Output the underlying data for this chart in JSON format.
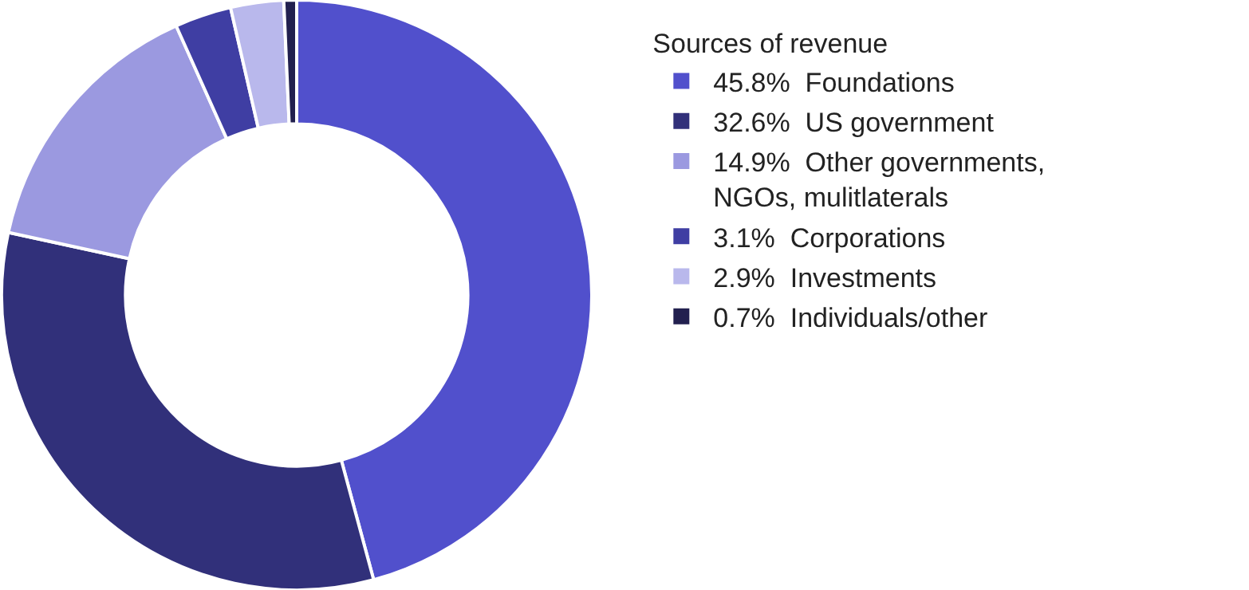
{
  "chart_data": {
    "type": "donut",
    "legend_title": "Sources of revenue",
    "legend": "right",
    "categories": [
      "Foundations",
      "US government",
      "Other governments, NGOs, mulitlaterals",
      "Corporations",
      "Investments",
      "Individuals/other"
    ],
    "values": [
      45.8,
      32.6,
      14.9,
      3.1,
      2.9,
      0.7
    ],
    "value_labels": [
      "45.8%",
      "32.6%",
      "14.9%",
      "3.1%",
      "2.9%",
      "0.7%"
    ],
    "colors": [
      "#5150cc",
      "#31307a",
      "#9b99e0",
      "#3f3ea3",
      "#b9b8ec",
      "#22204f"
    ]
  }
}
